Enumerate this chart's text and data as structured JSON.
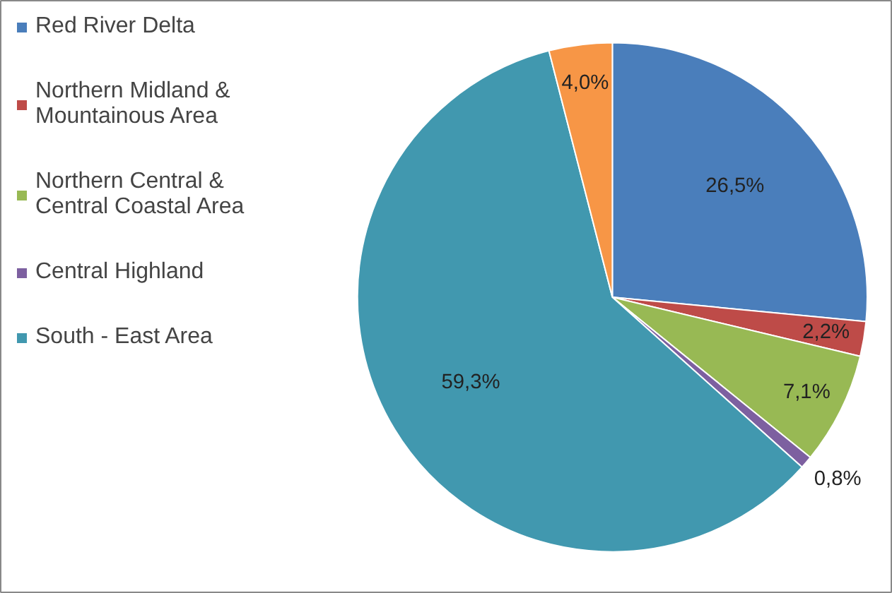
{
  "chart_data": {
    "type": "pie",
    "categories": [
      "Red River Delta",
      "Northern Midland & Mountainous Area",
      "Northern Central & Central Coastal Area",
      "Central Highland",
      "South - East Area",
      null
    ],
    "values": [
      26.5,
      2.2,
      7.1,
      0.8,
      59.3,
      4.0
    ],
    "colors": [
      "#4a7ebb",
      "#be4b48",
      "#98b954",
      "#7d60a0",
      "#4198af",
      "#f79646"
    ],
    "value_labels": [
      "26,5%",
      "2,2%",
      "7,1%",
      "0,8%",
      "59,3%",
      "4,0%"
    ],
    "legend": "left"
  }
}
